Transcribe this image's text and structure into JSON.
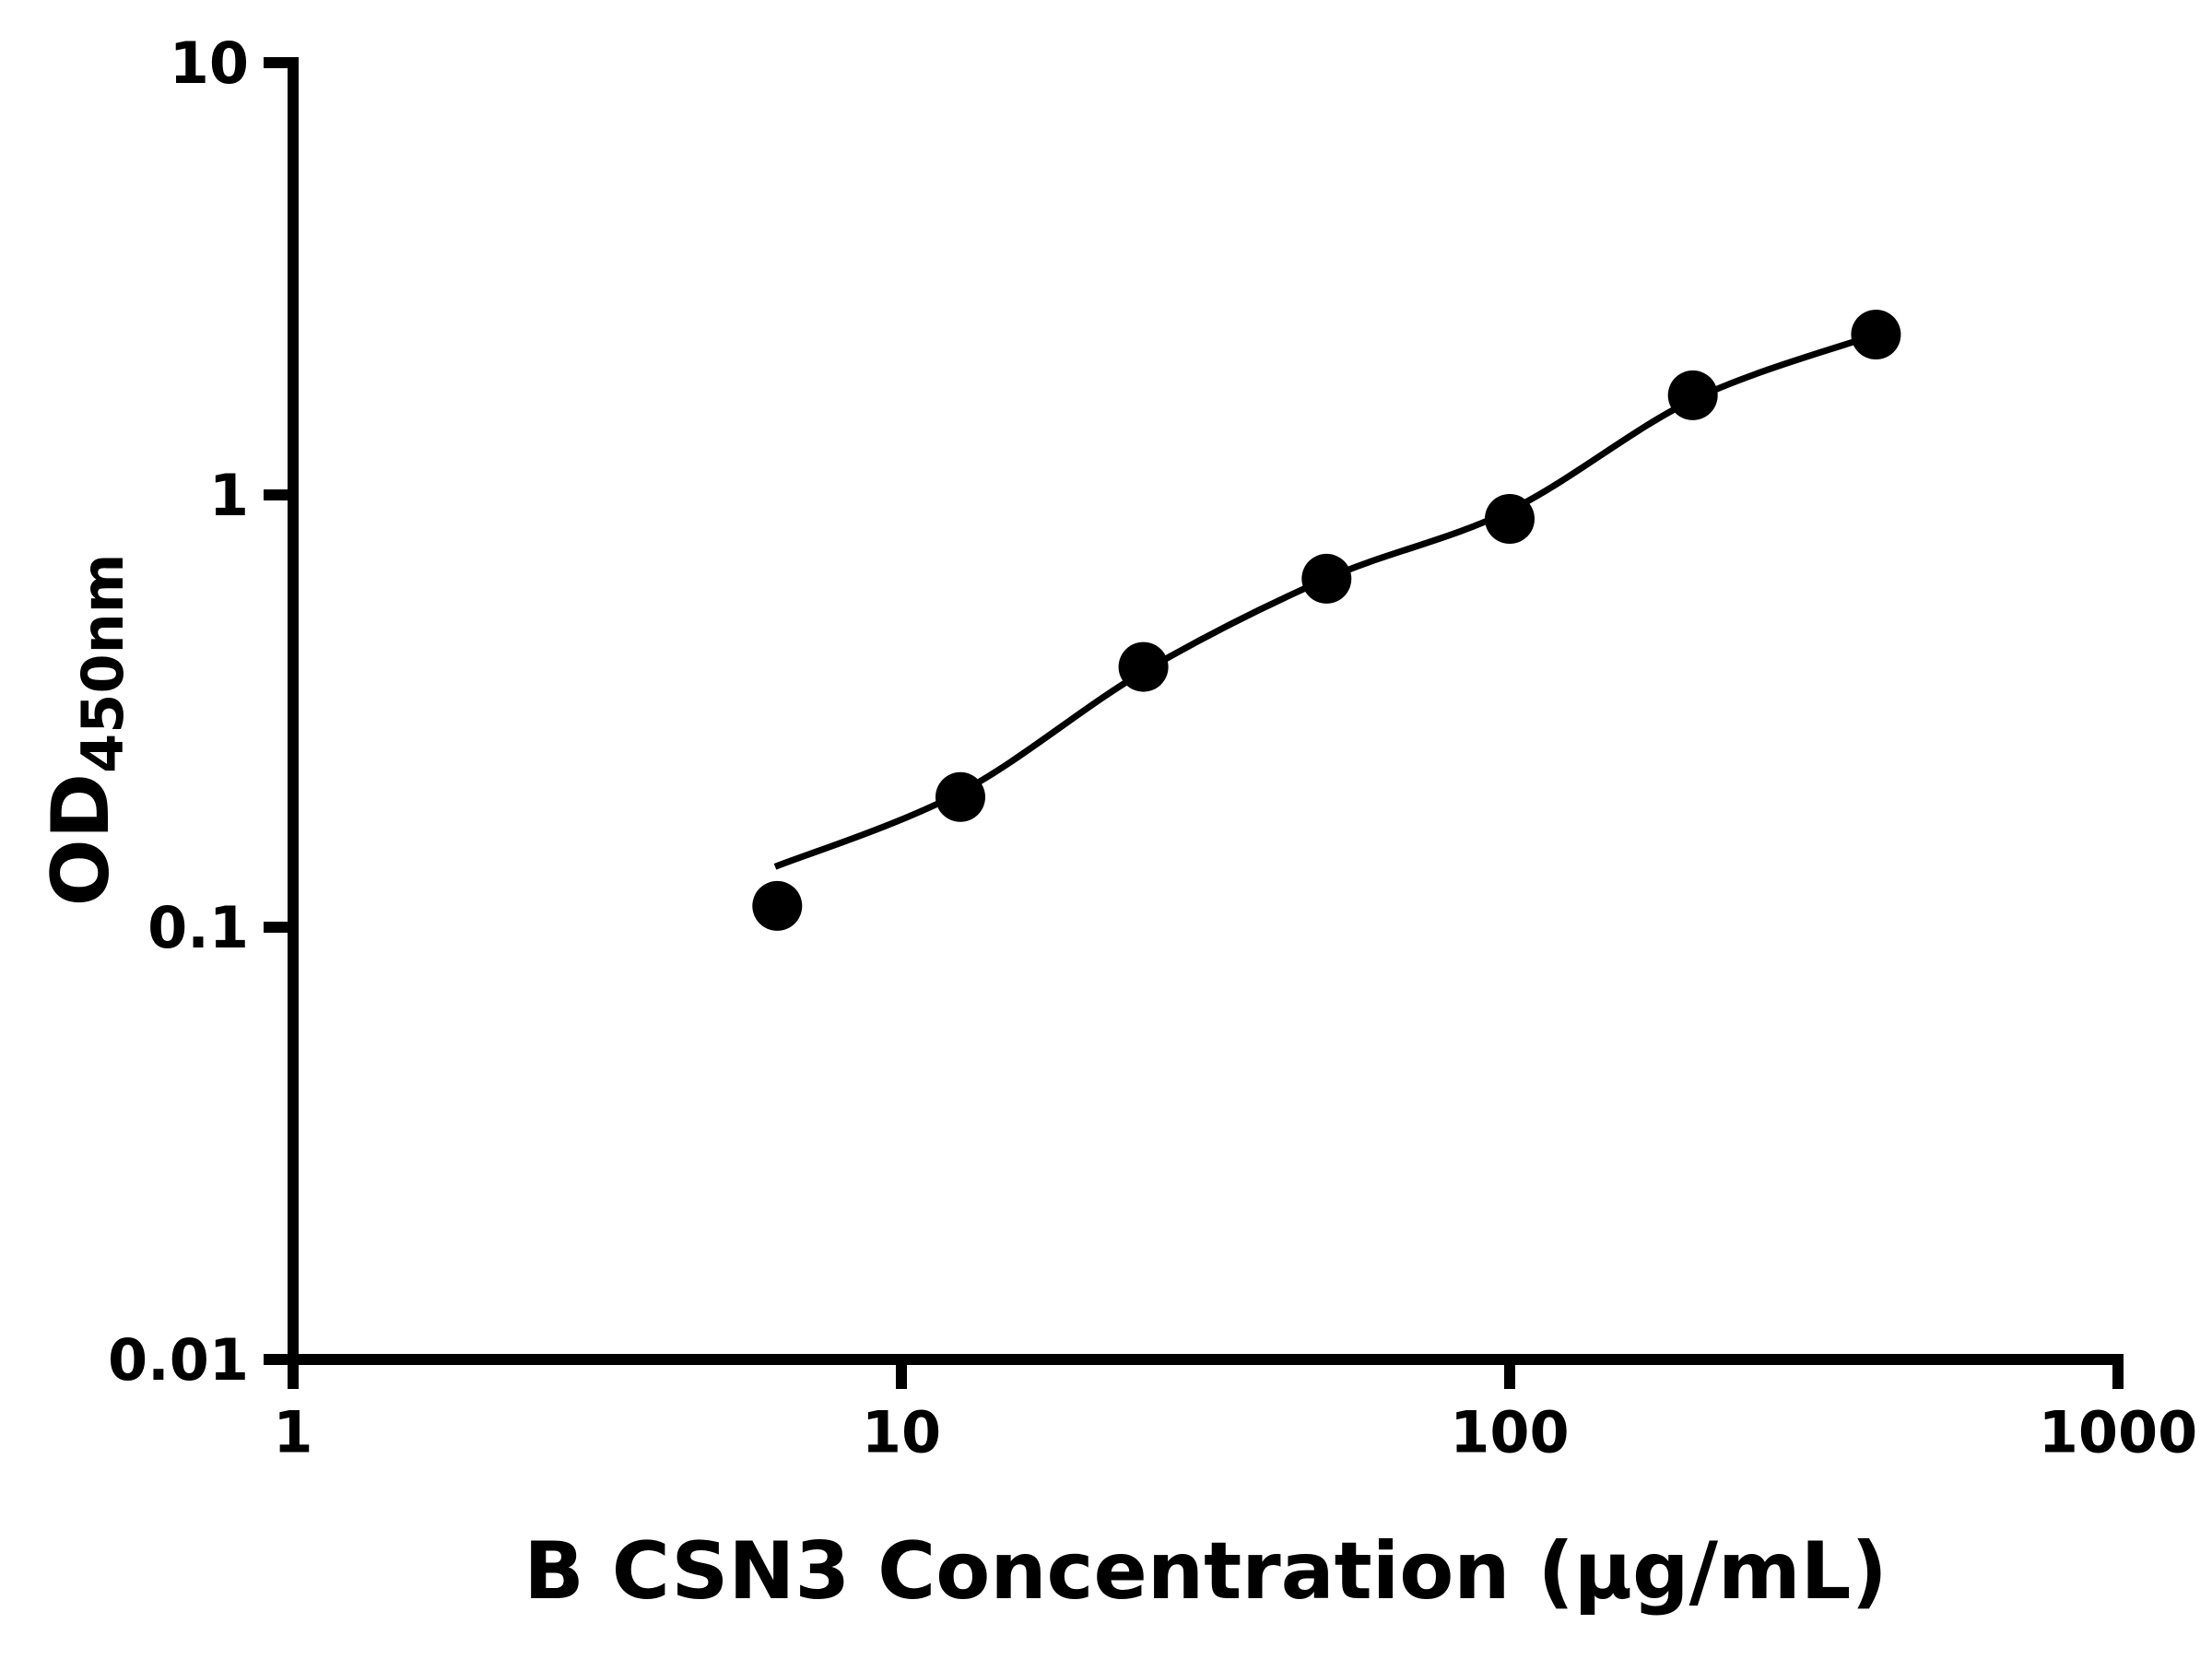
{
  "page": {
    "background": "#ffffff"
  },
  "chart_data": {
    "type": "scatter",
    "title": "",
    "xlabel": "B CSN3 Concentration (μg/mL)",
    "ylabel_main": "OD",
    "ylabel_sub": "450nm",
    "xscale": "log",
    "yscale": "log",
    "xlim": [
      1,
      1000
    ],
    "ylim": [
      0.01,
      10
    ],
    "x_ticks": [
      1,
      10,
      100,
      1000
    ],
    "x_tick_labels": [
      "1",
      "10",
      "100",
      "1000"
    ],
    "y_ticks": [
      0.01,
      0.1,
      1,
      10
    ],
    "y_tick_labels": [
      "0.01",
      "0.1",
      "1",
      "10"
    ],
    "grid": false,
    "legend": false,
    "x": [
      6.25,
      12.5,
      25,
      50,
      100,
      200,
      400
    ],
    "y": [
      0.112,
      0.2,
      0.4,
      0.64,
      0.88,
      1.7,
      2.35
    ],
    "curve": {
      "x": [
        6.2,
        12.5,
        25,
        50,
        100,
        200,
        400
      ],
      "y": [
        0.138,
        0.205,
        0.39,
        0.64,
        0.92,
        1.66,
        2.35
      ]
    },
    "marker_color": "#000000",
    "line_color": "#000000",
    "axis_color": "#000000"
  }
}
